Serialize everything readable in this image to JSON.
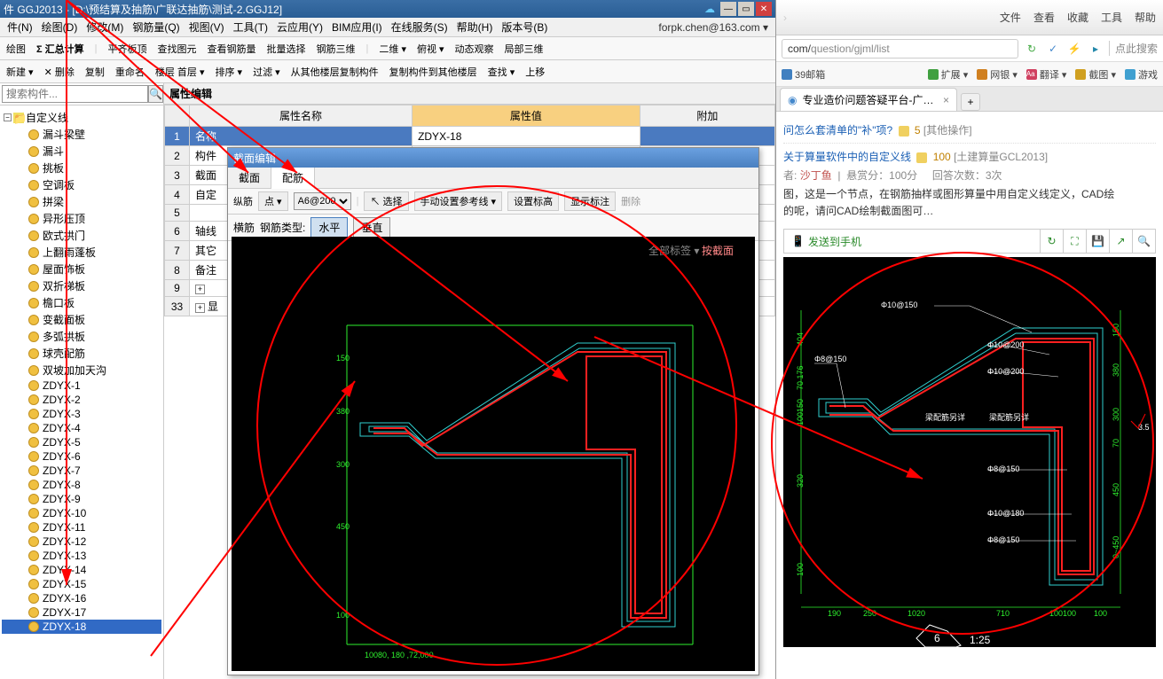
{
  "colors": {
    "titlebar": "#3a6ea5",
    "highlight": "#316ac5",
    "cad_bg": "#000000",
    "rebar": "#ff2020",
    "outline": "#30d0d0",
    "dim": "#2ef02e",
    "annot": "#ff0000",
    "prop_value_header": "#f8d080"
  },
  "titlebar": {
    "text": "件 GGJ2013 - [D:\\预结算及抽筋\\广联达抽筋\\测试-2.GGJ12]"
  },
  "menubar": {
    "items": [
      "件(N)",
      "绘图(D)",
      "修改(M)",
      "钢筋量(Q)",
      "视图(V)",
      "工具(T)",
      "云应用(Y)",
      "BIM应用(I)",
      "在线服务(S)",
      "帮助(H)",
      "版本号(B)"
    ],
    "user": "forpk.chen@163.com ▾"
  },
  "toolbar1": {
    "items": [
      "绘图",
      "Σ 汇总计算",
      "平齐板顶",
      "查找图元",
      "查看钢筋量",
      "批量选择",
      "钢筋三维",
      "二维 ▾",
      "俯视 ▾",
      "动态观察",
      "局部三维"
    ]
  },
  "toolbar2": {
    "items": [
      "新建 ▾",
      "✕ 删除",
      "复制",
      "重命名",
      "楼层 首层 ▾",
      "排序 ▾",
      "过滤 ▾",
      "从其他楼层复制构件",
      "复制构件到其他楼层",
      "查找 ▾",
      "上移"
    ]
  },
  "search": {
    "placeholder": "搜索构件..."
  },
  "tree": {
    "root": "自定义线",
    "items": [
      "漏斗梁壁",
      "漏斗",
      "挑板",
      "空调板",
      "拼梁",
      "异形压顶",
      "欧式拱门",
      "上翻雨蓬板",
      "屋面饰板",
      "双折梯板",
      "檐口板",
      "变截面板",
      "多弧拱板",
      "球壳配筋",
      "双坡加加天沟",
      "ZDYX-1",
      "ZDYX-2",
      "ZDYX-3",
      "ZDYX-4",
      "ZDYX-5",
      "ZDYX-6",
      "ZDYX-7",
      "ZDYX-8",
      "ZDYX-9",
      "ZDYX-10",
      "ZDYX-11",
      "ZDYX-12",
      "ZDYX-13",
      "ZDYX-14",
      "ZDYX-15",
      "ZDYX-16",
      "ZDYX-17",
      "ZDYX-18"
    ],
    "selected": "ZDYX-18"
  },
  "prop_panel": {
    "title": "属性编辑",
    "headers": {
      "name": "属性名称",
      "value": "属性值",
      "extra": "附加"
    },
    "rows": [
      {
        "n": "1",
        "name": "名称",
        "value": "ZDYX-18",
        "sel": true
      },
      {
        "n": "2",
        "name": "构件"
      },
      {
        "n": "3",
        "name": "截面"
      },
      {
        "n": "4",
        "name": "自定"
      },
      {
        "n": "5",
        "name": ""
      },
      {
        "n": "6",
        "name": "轴线"
      },
      {
        "n": "7",
        "name": "其它"
      },
      {
        "n": "8",
        "name": "备注"
      },
      {
        "n": "9",
        "name": "",
        "plus": true
      },
      {
        "n": "33",
        "name": "显",
        "plus": true
      }
    ]
  },
  "dialog": {
    "title": "截面编辑",
    "tabs": [
      "截面",
      "配筋"
    ],
    "active_tab": 1,
    "row1": {
      "label1": "纵筋",
      "label2": "点 ▾",
      "input": "A6@200",
      "btn_select": "选择",
      "btn_ref": "手动设置参考线 ▾",
      "btn_elev": "设置标高",
      "btn_annot": "显示标注",
      "btn_del": "删除"
    },
    "row2": {
      "label1": "横筋",
      "label2": "钢筋类型:",
      "btn_h": "水平",
      "btn_v": "垂直"
    },
    "footer_text": "10080, 180 ,72,000"
  },
  "browser": {
    "top_menu": [
      "文件",
      "查看",
      "收藏",
      "工具",
      "帮助"
    ],
    "url_prefix": "com/",
    "url_path": "question/gjml/list",
    "addr_hint": "点此搜索",
    "bookmarks": [
      {
        "label": "39邮箱",
        "color": "#4080c0"
      },
      {
        "label": "扩展 ▾",
        "color": "#40a040"
      },
      {
        "label": "网银 ▾",
        "color": "#d08020"
      },
      {
        "label": "翻译 ▾",
        "color": "#d04060",
        "badge": "Aa"
      },
      {
        "label": "截图 ▾",
        "color": "#d0a020"
      },
      {
        "label": "游戏",
        "color": "#40a0d0"
      }
    ],
    "tab": {
      "title": "专业造价问题答疑平台-广联达"
    },
    "q1": {
      "title": "问怎么套清单的\"补\"项?",
      "pts": "5",
      "cat": "[其他操作]"
    },
    "q2": {
      "title": "关于算量软件中的自定义线",
      "pts": "100",
      "cat": "[土建算量GCL2013]",
      "meta_author_label": "者:",
      "meta_author": "沙丁鱼",
      "meta_pts": "悬赏分：100分",
      "meta_ans": "回答次数：3次",
      "desc1": "图，这是一个节点，在钢筋抽样或图形算量中用自定义线定义，CAD绘",
      "desc2": "的呢，请问CAD绘制截面图可…"
    },
    "action_bar": {
      "send": "发送到手机"
    },
    "cad": {
      "labels": [
        "Φ10@150",
        "Φ10@200",
        "Φ10@200",
        "Φ8@150",
        "梁配筋另详",
        "梁配筋另详",
        "Φ8@150",
        "Φ10@180",
        "Φ8@150"
      ],
      "dims_left": [
        "404",
        "70 176",
        "100150",
        "320",
        "100"
      ],
      "dims_right": [
        "150",
        "380",
        "300",
        "70",
        "450",
        "0~450"
      ],
      "dims_bottom": [
        "190",
        "250",
        "1020",
        "710",
        "100100",
        "100"
      ],
      "node_num": "6",
      "scale": "1:25",
      "side": "3.5"
    }
  }
}
